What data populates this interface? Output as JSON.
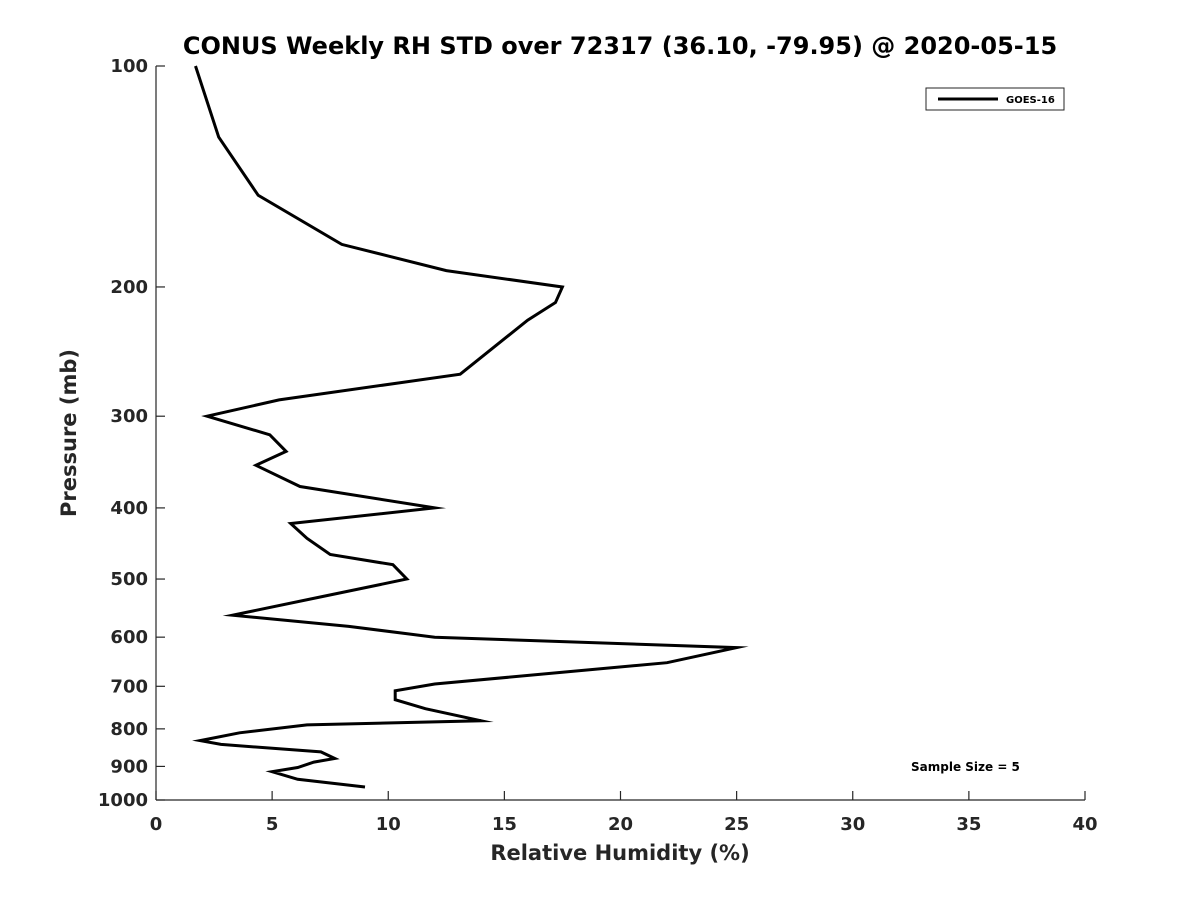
{
  "chart_data": {
    "type": "line",
    "title": "CONUS Weekly RH STD over 72317 (36.10, -79.95) @ 2020-05-15",
    "xlabel": "Relative Humidity (%)",
    "ylabel": "Pressure (mb)",
    "xlim": [
      0,
      40
    ],
    "ylim": [
      100,
      1000
    ],
    "y_scale": "log",
    "y_reversed": true,
    "x_ticks": [
      "0",
      "5",
      "10",
      "15",
      "20",
      "25",
      "30",
      "35",
      "40"
    ],
    "y_ticks": [
      "100",
      "200",
      "300",
      "400",
      "500",
      "600",
      "700",
      "800",
      "900",
      "1000"
    ],
    "legend_position": "top-right",
    "grid": false,
    "annotation": "Sample Size = 5",
    "series": [
      {
        "name": "GOES-16",
        "color": "#000000",
        "x": [
          1.7,
          2.7,
          4.4,
          8.0,
          12.5,
          17.5,
          17.2,
          16.0,
          13.1,
          5.3,
          2.2,
          4.9,
          5.6,
          4.3,
          6.2,
          12.0,
          5.8,
          6.5,
          7.5,
          10.2,
          10.8,
          7.2,
          3.3,
          8.3,
          12.0,
          25.0,
          22.0,
          17.5,
          12.0,
          10.3,
          10.3,
          11.6,
          14.0,
          6.5,
          3.6,
          1.9,
          2.8,
          7.1,
          7.7,
          6.8,
          6.1,
          5.0,
          6.1,
          9.0
        ],
        "y": [
          100,
          125,
          150,
          175,
          190,
          200,
          210,
          222,
          263,
          285,
          300,
          318,
          335,
          350,
          374,
          400,
          420,
          440,
          463,
          478,
          500,
          528,
          560,
          580,
          600,
          620,
          650,
          670,
          695,
          710,
          730,
          751,
          780,
          790,
          810,
          830,
          840,
          860,
          878,
          888,
          903,
          915,
          937,
          960
        ]
      }
    ]
  }
}
